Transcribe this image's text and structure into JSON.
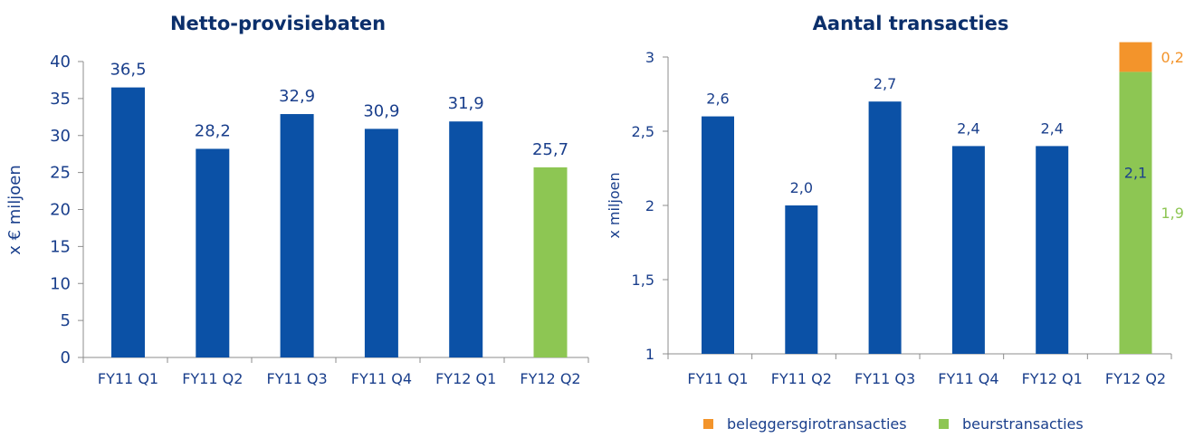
{
  "colors": {
    "blue": "#0b51a6",
    "green": "#8dc653",
    "orange": "#f3942b",
    "text": "#1a3f8c",
    "axis": "#8c8c8c"
  },
  "chart_data": [
    {
      "type": "bar",
      "title": "Netto-provisiebaten",
      "ylabel": "x € miljoen",
      "xlabel": "",
      "ylim": [
        0,
        40
      ],
      "yticks": [
        "0",
        "5",
        "10",
        "15",
        "20",
        "25",
        "30",
        "35",
        "40"
      ],
      "categories": [
        "FY11 Q1",
        "FY11 Q2",
        "FY11 Q3",
        "FY11 Q4",
        "FY12 Q1",
        "FY12 Q2"
      ],
      "values": [
        36.5,
        28.2,
        32.9,
        30.9,
        31.9,
        25.7
      ],
      "value_labels": [
        "36,5",
        "28,2",
        "32,9",
        "30,9",
        "31,9",
        "25,7"
      ],
      "bar_colors": [
        "#0b51a6",
        "#0b51a6",
        "#0b51a6",
        "#0b51a6",
        "#0b51a6",
        "#8dc653"
      ],
      "grid": false
    },
    {
      "type": "bar",
      "stacked": true,
      "title": "Aantal transacties",
      "ylabel": "x miljoen",
      "xlabel": "",
      "ylim": [
        1,
        3
      ],
      "yticks": [
        "1",
        "1,5",
        "2",
        "2,5",
        "3"
      ],
      "categories": [
        "FY11 Q1",
        "FY11 Q2",
        "FY11 Q3",
        "FY11 Q4",
        "FY12 Q1",
        "FY12 Q2"
      ],
      "values": [
        2.6,
        2.0,
        2.7,
        2.4,
        2.4,
        2.1
      ],
      "value_labels": [
        "2,6",
        "2,0",
        "2,7",
        "2,4",
        "2,4",
        "2,1"
      ],
      "split": {
        "category": "FY12 Q2",
        "series": [
          {
            "name": "beurstransacties",
            "value": 1.9,
            "label": "1,9",
            "color": "#8dc653"
          },
          {
            "name": "beleggersgirotransacties",
            "value": 0.2,
            "label": "0,2",
            "color": "#f3942b"
          }
        ]
      },
      "legend": [
        {
          "name": "beleggersgirotransacties",
          "color": "#f3942b"
        },
        {
          "name": "beurstransacties",
          "color": "#8dc653"
        }
      ],
      "legend_position": "bottom",
      "grid": false
    }
  ]
}
